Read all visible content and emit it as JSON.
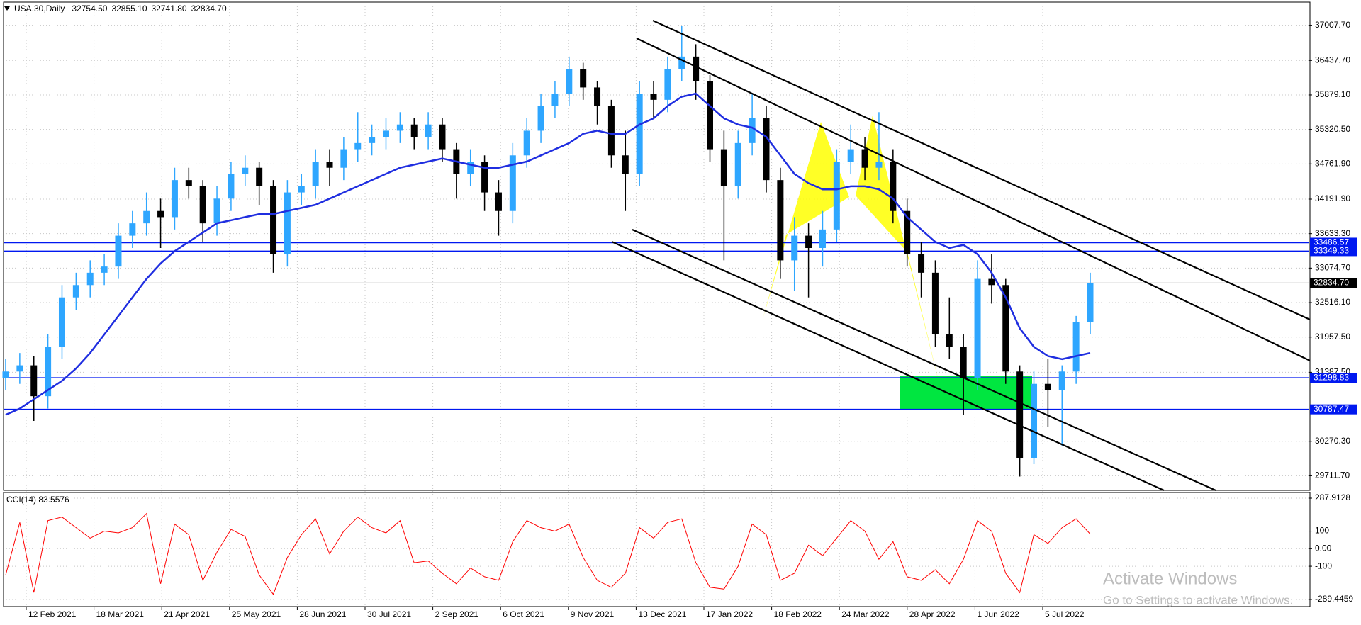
{
  "chart_data": [
    {
      "type": "candlestick",
      "title": "USA.30,Daily",
      "ohlc_labels": [
        "32754.50",
        "32855.10",
        "32741.80",
        "32834.70"
      ],
      "up_color": "#2ea6ff",
      "down_color": "#000000",
      "grid": true,
      "ylim": [
        29487,
        37359
      ],
      "yticks": [
        {
          "value": 37007.7,
          "label": "37007.70"
        },
        {
          "value": 36437.7,
          "label": "36437.70"
        },
        {
          "value": 35879.1,
          "label": "35879.10"
        },
        {
          "value": 35320.5,
          "label": "35320.50"
        },
        {
          "value": 34761.9,
          "label": "34761.90"
        },
        {
          "value": 34191.9,
          "label": "34191.90"
        },
        {
          "value": 33633.3,
          "label": "33633.30"
        },
        {
          "value": 33074.7,
          "label": "33074.70"
        },
        {
          "value": 32516.1,
          "label": "32516.10"
        },
        {
          "value": 31957.5,
          "label": "31957.50"
        },
        {
          "value": 31387.5,
          "label": "31387.50"
        },
        {
          "value": 30270.3,
          "label": "30270.30"
        },
        {
          "value": 29711.7,
          "label": "29711.70"
        }
      ],
      "xtick_labels": [
        "12 Feb 2021",
        "18 Mar 2021",
        "21 Apr 2021",
        "25 May 2021",
        "28 Jun 2021",
        "30 Jul 2021",
        "2 Sep 2021",
        "6 Oct 2021",
        "9 Nov 2021",
        "13 Dec 2021",
        "17 Jan 2022",
        "18 Feb 2022",
        "24 Mar 2022",
        "28 Apr 2022",
        "1 Jun 2022",
        "5 Jul 2022"
      ],
      "levels": [
        33486.57,
        33349.33,
        31298.83,
        30787.47
      ],
      "level_color": "#0018f0",
      "last_price": {
        "value": 32834.7,
        "label": "32834.70"
      },
      "candles": [
        [
          31300,
          31600,
          31100,
          31400
        ],
        [
          31400,
          31700,
          31200,
          31500
        ],
        [
          31500,
          31650,
          30600,
          31000
        ],
        [
          31000,
          32000,
          30800,
          31800
        ],
        [
          31800,
          32800,
          31600,
          32600
        ],
        [
          32600,
          33000,
          32400,
          32800
        ],
        [
          32800,
          33200,
          32600,
          33000
        ],
        [
          33000,
          33300,
          32800,
          33100
        ],
        [
          33100,
          33800,
          32900,
          33600
        ],
        [
          33600,
          34000,
          33400,
          33800
        ],
        [
          33800,
          34300,
          33600,
          34000
        ],
        [
          34000,
          34200,
          33400,
          33900
        ],
        [
          33900,
          34700,
          33700,
          34500
        ],
        [
          34500,
          34700,
          34200,
          34400
        ],
        [
          34400,
          34500,
          33500,
          33800
        ],
        [
          33800,
          34400,
          33600,
          34200
        ],
        [
          34200,
          34800,
          34000,
          34600
        ],
        [
          34600,
          34900,
          34400,
          34700
        ],
        [
          34700,
          34800,
          34100,
          34400
        ],
        [
          34400,
          34500,
          33000,
          33300
        ],
        [
          33300,
          34500,
          33100,
          34300
        ],
        [
          34300,
          34600,
          34100,
          34400
        ],
        [
          34400,
          35000,
          34200,
          34800
        ],
        [
          34800,
          35000,
          34400,
          34700
        ],
        [
          34700,
          35200,
          34500,
          35000
        ],
        [
          35000,
          35600,
          34800,
          35100
        ],
        [
          35100,
          35400,
          34900,
          35200
        ],
        [
          35200,
          35500,
          35000,
          35300
        ],
        [
          35300,
          35600,
          35100,
          35400
        ],
        [
          35400,
          35500,
          35000,
          35200
        ],
        [
          35200,
          35600,
          35000,
          35400
        ],
        [
          35400,
          35500,
          34800,
          35000
        ],
        [
          35000,
          35100,
          34200,
          34600
        ],
        [
          34600,
          35000,
          34400,
          34800
        ],
        [
          34800,
          34900,
          34000,
          34300
        ],
        [
          34300,
          34500,
          33600,
          34000
        ],
        [
          34000,
          35100,
          33800,
          34900
        ],
        [
          34900,
          35500,
          34700,
          35300
        ],
        [
          35300,
          35900,
          35100,
          35700
        ],
        [
          35700,
          36100,
          35500,
          35900
        ],
        [
          35900,
          36500,
          35700,
          36300
        ],
        [
          36300,
          36400,
          35800,
          36000
        ],
        [
          36000,
          36100,
          35400,
          35700
        ],
        [
          35700,
          35800,
          34700,
          34900
        ],
        [
          34900,
          35300,
          34000,
          34600
        ],
        [
          34600,
          36100,
          34400,
          35900
        ],
        [
          35900,
          36100,
          35500,
          35800
        ],
        [
          35800,
          36500,
          35600,
          36300
        ],
        [
          36300,
          37000,
          36100,
          36500
        ],
        [
          36500,
          36700,
          35800,
          36100
        ],
        [
          36100,
          36200,
          34800,
          35000
        ],
        [
          35000,
          35300,
          33200,
          34400
        ],
        [
          34400,
          35300,
          34200,
          35100
        ],
        [
          35100,
          35900,
          34900,
          35500
        ],
        [
          35500,
          35700,
          34300,
          34500
        ],
        [
          34500,
          34700,
          32900,
          33200
        ],
        [
          33200,
          33900,
          32700,
          33600
        ],
        [
          33600,
          33800,
          32600,
          33400
        ],
        [
          33400,
          34000,
          33100,
          33700
        ],
        [
          33700,
          35000,
          33500,
          34800
        ],
        [
          34800,
          35400,
          34600,
          35000
        ],
        [
          35000,
          35200,
          34500,
          34700
        ],
        [
          34700,
          35600,
          34500,
          34800
        ],
        [
          34800,
          35000,
          33800,
          34000
        ],
        [
          34000,
          34200,
          33100,
          33300
        ],
        [
          33300,
          33500,
          32600,
          33000
        ],
        [
          33000,
          33200,
          31800,
          32000
        ],
        [
          32000,
          32600,
          31600,
          31800
        ],
        [
          31800,
          32000,
          30700,
          31300
        ],
        [
          31300,
          33200,
          31100,
          32900
        ],
        [
          32900,
          33300,
          32500,
          32800
        ],
        [
          32800,
          32900,
          31200,
          31400
        ],
        [
          31400,
          31500,
          29700,
          30000
        ],
        [
          30000,
          31400,
          29900,
          31200
        ],
        [
          31200,
          31600,
          30500,
          31100
        ],
        [
          31100,
          31500,
          30200,
          31400
        ],
        [
          31400,
          32300,
          31200,
          32200
        ],
        [
          32200,
          33000,
          32000,
          32834.7
        ]
      ],
      "ma_color": "#1f2ee0",
      "ma": [
        30700,
        30800,
        30950,
        31100,
        31250,
        31450,
        31700,
        32000,
        32300,
        32600,
        32900,
        33150,
        33350,
        33500,
        33650,
        33800,
        33850,
        33900,
        33950,
        33950,
        34000,
        34050,
        34100,
        34200,
        34300,
        34400,
        34500,
        34600,
        34700,
        34750,
        34800,
        34850,
        34800,
        34750,
        34700,
        34700,
        34750,
        34800,
        34900,
        35000,
        35100,
        35250,
        35300,
        35250,
        35250,
        35400,
        35500,
        35700,
        35850,
        35900,
        35700,
        35500,
        35400,
        35350,
        35200,
        34900,
        34600,
        34450,
        34350,
        34350,
        34400,
        34400,
        34350,
        34200,
        33900,
        33700,
        33500,
        33400,
        33450,
        33300,
        33000,
        32600,
        32100,
        31800,
        31650,
        31600,
        31650,
        31700
      ],
      "watermark": "Activate Windows",
      "watermark_sub": "Go to Settings to activate Windows."
    },
    {
      "type": "line",
      "title": "CCI(14) 83.5576",
      "color": "#ff0000",
      "grid": true,
      "ylim": [
        -289.4459,
        287.9128
      ],
      "yticks": [
        287.9128,
        100,
        {
          "value": 0,
          "label": "0.00"
        },
        -100,
        -289.4459
      ],
      "values": [
        -150,
        150,
        -250,
        160,
        180,
        120,
        60,
        100,
        90,
        120,
        200,
        -200,
        140,
        80,
        -180,
        -20,
        110,
        70,
        -150,
        -260,
        -50,
        80,
        170,
        -30,
        100,
        180,
        120,
        90,
        160,
        -80,
        -70,
        -140,
        -200,
        -110,
        -160,
        -180,
        40,
        160,
        120,
        100,
        140,
        -50,
        -180,
        -220,
        -140,
        120,
        60,
        150,
        170,
        -80,
        -220,
        -230,
        -100,
        140,
        80,
        -180,
        -140,
        20,
        -40,
        60,
        160,
        100,
        -60,
        40,
        -160,
        -180,
        -120,
        -200,
        -60,
        160,
        100,
        -140,
        -250,
        80,
        30,
        120,
        170,
        83.5576
      ]
    }
  ]
}
